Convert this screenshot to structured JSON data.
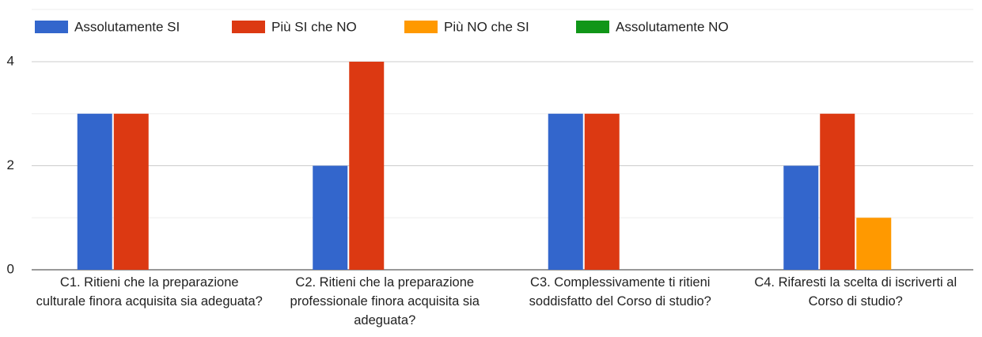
{
  "chart_data": {
    "type": "bar",
    "categories": [
      "C1. Ritieni che la preparazione culturale finora acquisita sia adeguata?",
      "C2. Ritieni che la preparazione professionale finora acquisita sia adeguata?",
      "C3. Complessivamente ti ritieni soddisfatto del Corso di studio?",
      "C4. Rifaresti la scelta di iscriverti al Corso di studio?"
    ],
    "series": [
      {
        "name": "Assolutamente SI",
        "color": "#3366cc",
        "values": [
          3,
          2,
          3,
          2
        ]
      },
      {
        "name": "Più SI che NO",
        "color": "#dc3912",
        "values": [
          3,
          4,
          3,
          3
        ]
      },
      {
        "name": "Più NO che SI",
        "color": "#ff9900",
        "values": [
          0,
          0,
          0,
          1
        ]
      },
      {
        "name": "Assolutamente NO",
        "color": "#109618",
        "values": [
          0,
          0,
          0,
          0
        ]
      }
    ],
    "ylim": [
      0,
      4
    ],
    "yticks": [
      0,
      2,
      4
    ],
    "minor_yticks": [
      1,
      3
    ],
    "grid": true,
    "legend": "top"
  }
}
